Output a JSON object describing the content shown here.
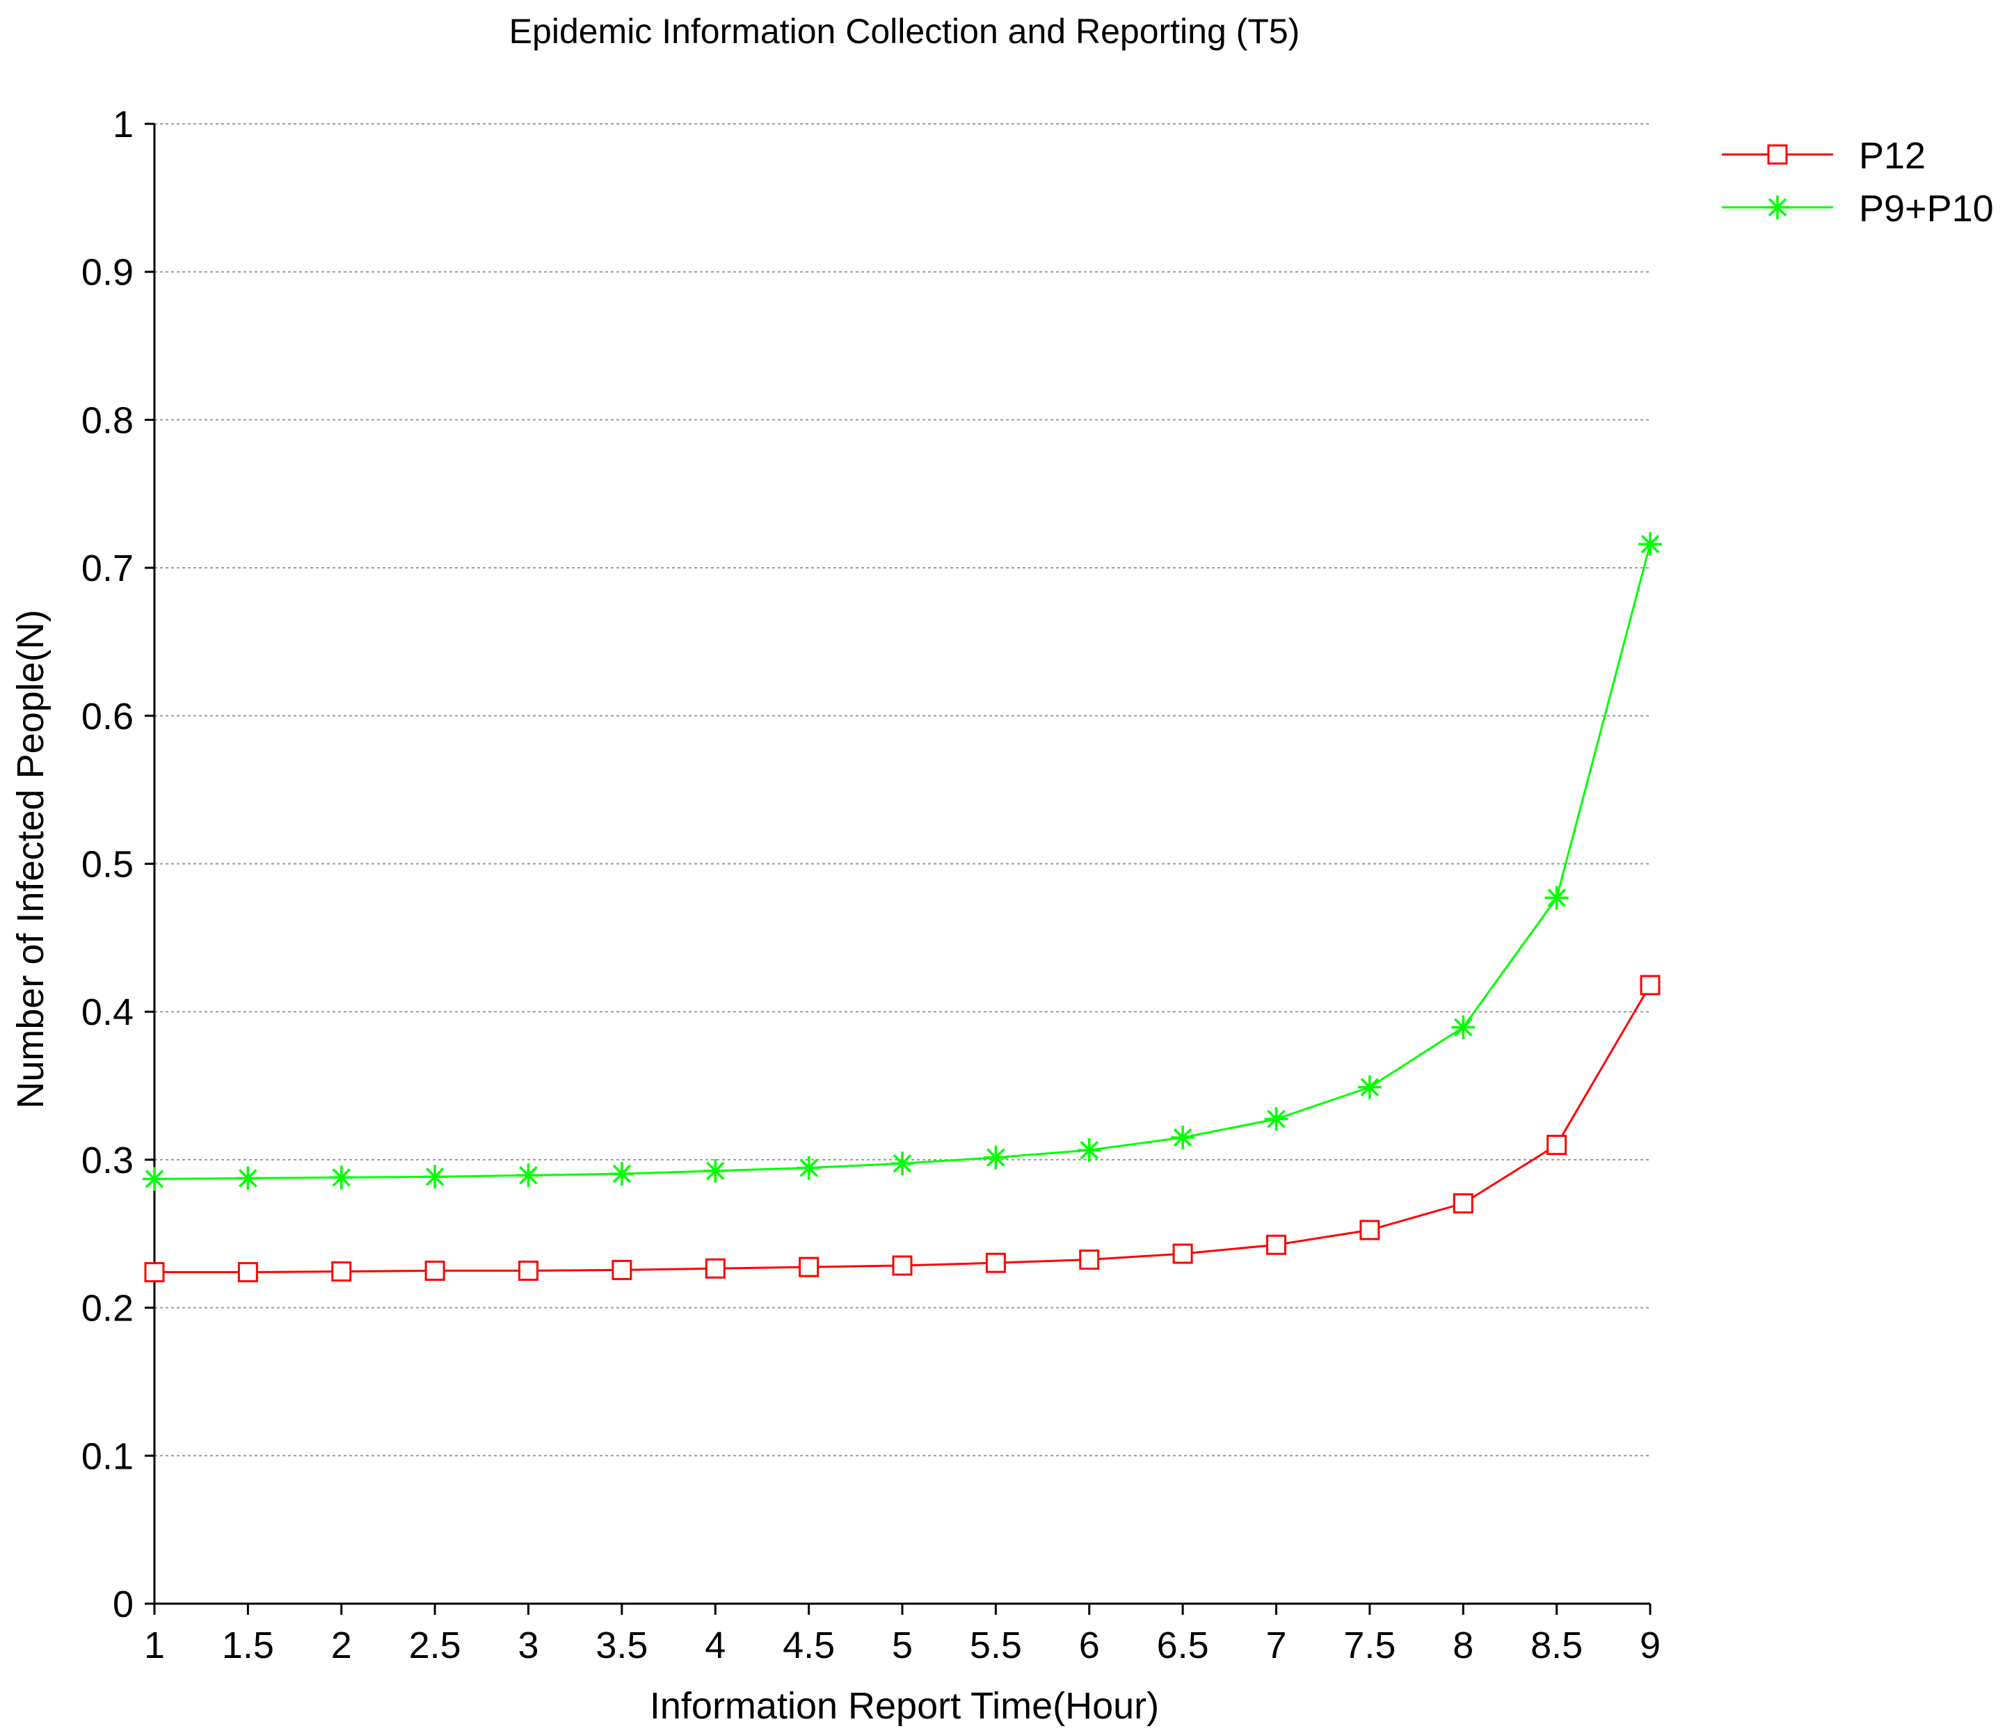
{
  "chart_data": {
    "type": "line",
    "title": "Epidemic Information Collection and Reporting (T5)",
    "xlabel": "Information Report Time(Hour)",
    "ylabel": "Number of Infected People(N)",
    "x": [
      1,
      1.5,
      2,
      2.5,
      3,
      3.5,
      4,
      4.5,
      5,
      5.5,
      6,
      6.5,
      7,
      7.5,
      8,
      8.5,
      9
    ],
    "x_tick_labels": [
      "1",
      "1.5",
      "2",
      "2.5",
      "3",
      "3.5",
      "4",
      "4.5",
      "5",
      "5.5",
      "6",
      "6.5",
      "7",
      "7.5",
      "8",
      "8.5",
      "9"
    ],
    "y_tick_values": [
      0,
      0.1,
      0.2,
      0.3,
      0.4,
      0.5,
      0.6,
      0.7,
      0.8,
      0.9,
      1
    ],
    "y_tick_labels": [
      "0",
      "0.1",
      "0.2",
      "0.3",
      "0.4",
      "0.5",
      "0.6",
      "0.7",
      "0.8",
      "0.9",
      "1"
    ],
    "xlim": [
      1,
      9
    ],
    "ylim": [
      0,
      1
    ],
    "grid": "horizontal dashed",
    "legend_position": "top-right",
    "series": [
      {
        "name": "P12",
        "color": "#ff0000",
        "marker": "open-square",
        "values": [
          0.224,
          0.224,
          0.2245,
          0.225,
          0.225,
          0.2255,
          0.2265,
          0.2275,
          0.2285,
          0.2303,
          0.2325,
          0.2365,
          0.2425,
          0.2525,
          0.2705,
          0.31,
          0.418
        ]
      },
      {
        "name": "P9+P10",
        "color": "#00ff00",
        "marker": "asterisk",
        "values": [
          0.287,
          0.2875,
          0.288,
          0.2885,
          0.2895,
          0.2905,
          0.2925,
          0.2945,
          0.2975,
          0.3015,
          0.3065,
          0.315,
          0.3275,
          0.349,
          0.3895,
          0.477,
          0.716
        ]
      }
    ]
  }
}
